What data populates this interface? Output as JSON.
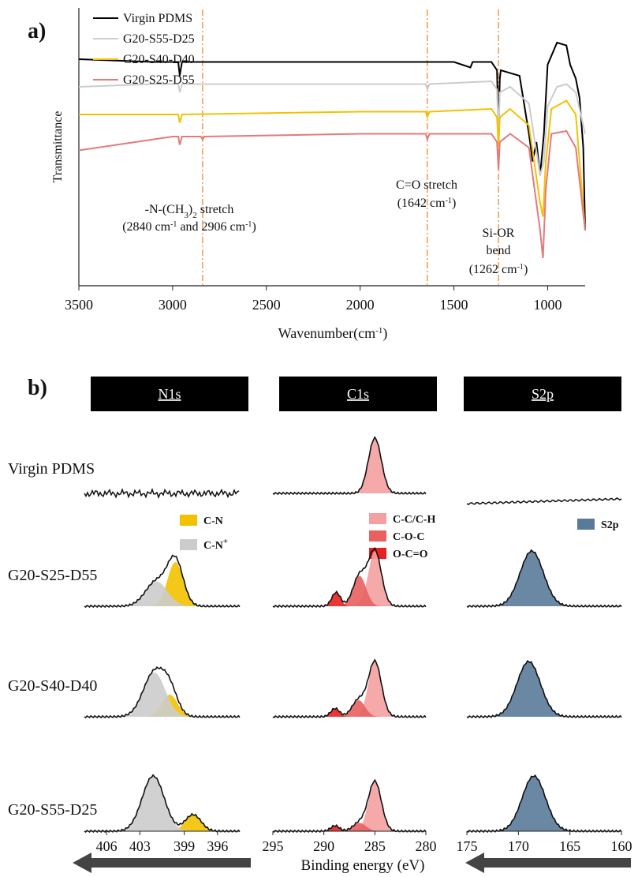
{
  "panel_a": {
    "label": "a)",
    "ylabel": "Transmittance",
    "xlabel": "Wavenumber(cm-1)",
    "annotations": {
      "nch3": [
        "-N-(CH3)2 stretch",
        "(2840 cm-1 and 2906 cm-1)"
      ],
      "co": [
        "C=O stretch",
        "(1642 cm-1)"
      ],
      "sior": [
        "Si-OR",
        "bend",
        "(1262 cm-1)"
      ]
    }
  },
  "panel_b": {
    "label": "b)",
    "headers": [
      "N1s",
      "C1s",
      "S2p"
    ],
    "sample_labels": [
      "Virgin PDMS",
      "G20-S25-D55",
      "G20-S40-D40",
      "G20-S55-D25"
    ],
    "legend_n": [
      "C-N",
      "C-N+"
    ],
    "legend_c": [
      "C-C/C-H",
      "C-O-C",
      "O-C=O"
    ],
    "legend_s": [
      "S2p"
    ],
    "xlabel": "Binding energy (eV)"
  },
  "colors": {
    "virgin": "#000000",
    "s55": "#cccccc",
    "s40": "#f2c200",
    "s25": "#e57a7a",
    "marker": "#f29a4a",
    "cn": "#f2c200",
    "cnplus": "#cccccc",
    "cc": "#f4a0a0",
    "coc": "#e86060",
    "oco": "#e82020",
    "s2p": "#5a7a9a",
    "header_bg": "#000000",
    "arrow": "#444444"
  },
  "chart_data": [
    {
      "type": "line",
      "title": "",
      "xlabel": "Wavenumber(cm-1)",
      "ylabel": "Transmittance",
      "xlim": [
        3500,
        800
      ],
      "xticks": [
        3500,
        3000,
        2500,
        2000,
        1500,
        1000
      ],
      "reference_lines": [
        2840,
        1642,
        1262
      ],
      "series": [
        {
          "name": "Virgin PDMS",
          "x": [
            3500,
            3100,
            2970,
            2962,
            2950,
            2900,
            2000,
            1500,
            1412,
            1400,
            1300,
            1270,
            1262,
            1255,
            1250,
            1150,
            1100,
            1080,
            1060,
            1040,
            1020,
            1000,
            950,
            900,
            880,
            850,
            830,
            810,
            800
          ],
          "y": [
            0.82,
            0.81,
            0.81,
            0.76,
            0.81,
            0.81,
            0.81,
            0.81,
            0.79,
            0.81,
            0.81,
            0.78,
            0.55,
            0.75,
            0.78,
            0.76,
            0.55,
            0.45,
            0.52,
            0.4,
            0.55,
            0.8,
            0.88,
            0.87,
            0.8,
            0.75,
            0.68,
            0.5,
            0.2
          ]
        },
        {
          "name": "G20-S55-D25",
          "x": [
            3500,
            3100,
            2970,
            2962,
            2950,
            2000,
            1650,
            1642,
            1630,
            1300,
            1270,
            1262,
            1255,
            1200,
            1100,
            1040,
            1020,
            1000,
            950,
            900,
            850,
            800
          ],
          "y": [
            0.72,
            0.73,
            0.73,
            0.7,
            0.73,
            0.73,
            0.73,
            0.71,
            0.73,
            0.74,
            0.71,
            0.55,
            0.7,
            0.72,
            0.66,
            0.4,
            0.45,
            0.65,
            0.72,
            0.73,
            0.7,
            0.55
          ]
        },
        {
          "name": "G20-S40-D40",
          "x": [
            3500,
            3200,
            3000,
            2970,
            2962,
            2950,
            2000,
            1650,
            1642,
            1630,
            1300,
            1270,
            1262,
            1255,
            1200,
            1100,
            1040,
            1025,
            1010,
            980,
            900,
            850,
            800
          ],
          "y": [
            0.62,
            0.62,
            0.62,
            0.62,
            0.59,
            0.62,
            0.63,
            0.63,
            0.61,
            0.63,
            0.64,
            0.61,
            0.5,
            0.61,
            0.64,
            0.58,
            0.3,
            0.25,
            0.45,
            0.64,
            0.67,
            0.62,
            0.2
          ]
        },
        {
          "name": "G20-S25-D55",
          "x": [
            3500,
            3200,
            3000,
            2970,
            2962,
            2950,
            2850,
            2840,
            2830,
            2000,
            1650,
            1642,
            1630,
            1300,
            1270,
            1262,
            1255,
            1200,
            1100,
            1040,
            1025,
            1010,
            980,
            900,
            850,
            800
          ],
          "y": [
            0.49,
            0.52,
            0.54,
            0.54,
            0.51,
            0.54,
            0.54,
            0.53,
            0.54,
            0.55,
            0.55,
            0.53,
            0.55,
            0.55,
            0.52,
            0.42,
            0.52,
            0.55,
            0.5,
            0.2,
            0.1,
            0.35,
            0.55,
            0.56,
            0.5,
            0.2
          ]
        }
      ]
    },
    {
      "type": "area",
      "title": "N1s",
      "xlabel": "Binding energy (eV)",
      "xlim": [
        408,
        394
      ],
      "xticks": [
        406,
        403,
        399,
        396
      ],
      "samples": [
        {
          "sample": "G20-S25-D55",
          "components": [
            {
              "name": "C-N",
              "center": 399.8,
              "height": 0.8
            },
            {
              "name": "C-N+",
              "center": 401.5,
              "height": 0.45
            }
          ]
        },
        {
          "sample": "G20-S40-D40",
          "components": [
            {
              "name": "C-N",
              "center": 400.3,
              "height": 0.4
            },
            {
              "name": "C-N+",
              "center": 401.7,
              "height": 0.8
            }
          ]
        },
        {
          "sample": "G20-S55-D25",
          "components": [
            {
              "name": "C-N",
              "center": 398.2,
              "height": 0.3
            },
            {
              "name": "C-N+",
              "center": 401.8,
              "height": 1.0
            }
          ]
        }
      ]
    },
    {
      "type": "area",
      "title": "C1s",
      "xlabel": "Binding energy (eV)",
      "xlim": [
        295,
        280
      ],
      "xticks": [
        295,
        290,
        285,
        280
      ],
      "samples": [
        {
          "sample": "Virgin PDMS",
          "components": [
            {
              "name": "C-C/C-H",
              "center": 285.0,
              "height": 1.0
            }
          ]
        },
        {
          "sample": "G20-S25-D55",
          "components": [
            {
              "name": "C-C/C-H",
              "center": 285.0,
              "height": 1.0
            },
            {
              "name": "C-O-C",
              "center": 286.5,
              "height": 0.55
            },
            {
              "name": "O-C=O",
              "center": 288.8,
              "height": 0.25
            }
          ]
        },
        {
          "sample": "G20-S40-D40",
          "components": [
            {
              "name": "C-C/C-H",
              "center": 285.0,
              "height": 1.0
            },
            {
              "name": "C-O-C",
              "center": 286.6,
              "height": 0.3
            },
            {
              "name": "O-C=O",
              "center": 288.9,
              "height": 0.15
            }
          ]
        },
        {
          "sample": "G20-S55-D25",
          "components": [
            {
              "name": "C-C/C-H",
              "center": 285.0,
              "height": 0.9
            },
            {
              "name": "C-O-C",
              "center": 286.5,
              "height": 0.15
            },
            {
              "name": "O-C=O",
              "center": 288.9,
              "height": 0.1
            }
          ]
        }
      ]
    },
    {
      "type": "area",
      "title": "S2p",
      "xlabel": "Binding energy (eV)",
      "xlim": [
        175,
        160
      ],
      "xticks": [
        175,
        170,
        165,
        160
      ],
      "samples": [
        {
          "sample": "G20-S25-D55",
          "components": [
            {
              "name": "S2p",
              "center": 168.7,
              "height": 1.0
            }
          ]
        },
        {
          "sample": "G20-S40-D40",
          "components": [
            {
              "name": "S2p",
              "center": 169.0,
              "height": 1.0
            }
          ]
        },
        {
          "sample": "G20-S55-D25",
          "components": [
            {
              "name": "S2p",
              "center": 168.5,
              "height": 1.0
            }
          ]
        }
      ]
    }
  ]
}
